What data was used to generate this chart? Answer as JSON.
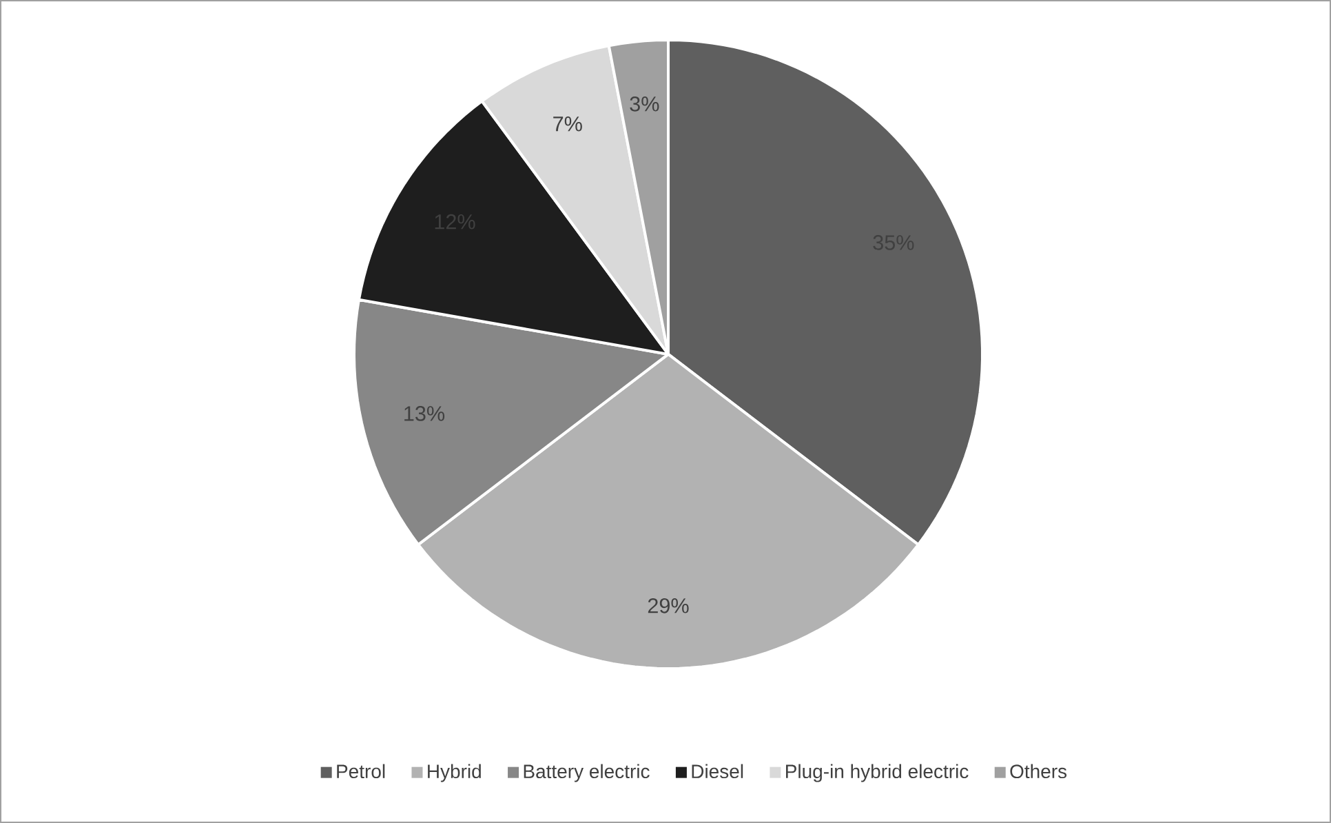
{
  "chart_data": {
    "type": "pie",
    "categories": [
      "Petrol",
      "Hybrid",
      "Battery electric",
      "Diesel",
      "Plug-in hybrid electric",
      "Others"
    ],
    "values": [
      35,
      29,
      13,
      12,
      7,
      3
    ],
    "colors": [
      "#5f5f5f",
      "#b2b2b2",
      "#878787",
      "#1e1e1e",
      "#d9d9d9",
      "#a0a0a0"
    ],
    "value_labels": [
      "35%",
      "29%",
      "13%",
      "12%",
      "7%",
      "3%"
    ],
    "legend": "bottom"
  }
}
